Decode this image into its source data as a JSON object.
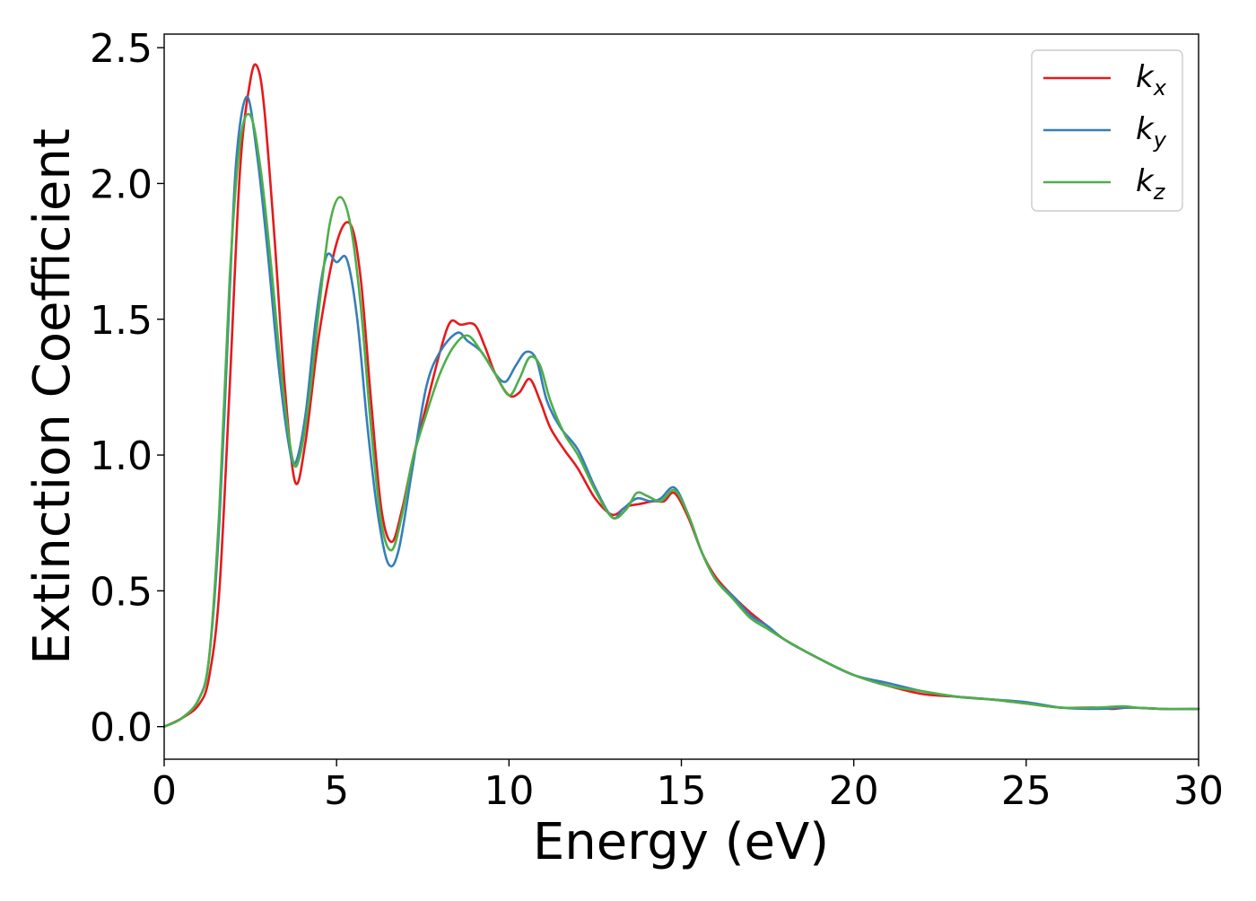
{
  "chart_data": {
    "type": "line",
    "title": "",
    "xlabel": "Energy (eV)",
    "ylabel": "Extinction Coefficient",
    "xlim": [
      0,
      30
    ],
    "ylim": [
      -0.12,
      2.55
    ],
    "xticks": [
      0,
      5,
      10,
      15,
      20,
      25,
      30
    ],
    "yticks": [
      0.0,
      0.5,
      1.0,
      1.5,
      2.0,
      2.5
    ],
    "xtick_labels": [
      "0",
      "5",
      "10",
      "15",
      "20",
      "25",
      "30"
    ],
    "ytick_labels": [
      "0.0",
      "0.5",
      "1.0",
      "1.5",
      "2.0",
      "2.5"
    ],
    "grid": false,
    "legend_position": "top-right",
    "series": [
      {
        "name": "kx",
        "label_main": "k",
        "label_sub": "x",
        "color": "#e41a1c",
        "x": [
          0,
          0.5,
          1.0,
          1.3,
          1.6,
          1.9,
          2.2,
          2.5,
          2.7,
          2.9,
          3.2,
          3.5,
          3.8,
          4.1,
          4.5,
          5.0,
          5.4,
          5.7,
          6.0,
          6.3,
          6.6,
          6.9,
          7.2,
          7.6,
          8.0,
          8.3,
          8.6,
          9.0,
          9.3,
          9.6,
          10.0,
          10.3,
          10.6,
          10.9,
          11.2,
          11.6,
          12.0,
          12.5,
          13.0,
          13.4,
          13.8,
          14.2,
          14.5,
          14.8,
          15.2,
          15.6,
          16.0,
          16.5,
          17.0,
          17.5,
          18.0,
          19.0,
          20.0,
          21.0,
          22.0,
          23.0,
          24.0,
          25.0,
          26.0,
          27.0,
          27.5,
          28.0,
          29.0,
          30.0
        ],
        "values": [
          0.0,
          0.03,
          0.08,
          0.18,
          0.5,
          1.25,
          2.05,
          2.38,
          2.43,
          2.28,
          1.8,
          1.25,
          0.9,
          1.05,
          1.45,
          1.78,
          1.85,
          1.65,
          1.2,
          0.8,
          0.68,
          0.8,
          0.98,
          1.18,
          1.38,
          1.49,
          1.48,
          1.48,
          1.4,
          1.3,
          1.22,
          1.23,
          1.28,
          1.2,
          1.1,
          1.02,
          0.95,
          0.84,
          0.78,
          0.81,
          0.82,
          0.83,
          0.83,
          0.86,
          0.77,
          0.64,
          0.55,
          0.48,
          0.42,
          0.37,
          0.32,
          0.25,
          0.19,
          0.15,
          0.12,
          0.11,
          0.1,
          0.085,
          0.07,
          0.07,
          0.065,
          0.07,
          0.065,
          0.065
        ]
      },
      {
        "name": "ky",
        "label_main": "k",
        "label_sub": "y",
        "color": "#377eb8",
        "x": [
          0,
          0.5,
          1.0,
          1.3,
          1.6,
          1.9,
          2.1,
          2.4,
          2.7,
          3.0,
          3.3,
          3.6,
          3.8,
          4.1,
          4.4,
          4.7,
          5.0,
          5.3,
          5.6,
          5.9,
          6.2,
          6.5,
          6.8,
          7.2,
          7.6,
          8.0,
          8.5,
          8.8,
          9.2,
          9.6,
          9.9,
          10.2,
          10.5,
          10.8,
          11.1,
          11.5,
          12.0,
          12.5,
          13.0,
          13.3,
          13.7,
          14.1,
          14.4,
          14.8,
          15.2,
          15.6,
          16.0,
          16.5,
          17.0,
          17.5,
          18.0,
          19.0,
          20.0,
          21.0,
          22.0,
          23.0,
          24.0,
          25.0,
          26.0,
          27.0,
          28.0,
          29.0,
          30.0
        ],
        "values": [
          0.0,
          0.03,
          0.1,
          0.25,
          0.75,
          1.6,
          2.1,
          2.32,
          2.1,
          1.75,
          1.35,
          1.05,
          0.97,
          1.15,
          1.5,
          1.73,
          1.71,
          1.72,
          1.5,
          1.1,
          0.78,
          0.6,
          0.65,
          0.95,
          1.25,
          1.38,
          1.45,
          1.42,
          1.38,
          1.3,
          1.27,
          1.33,
          1.38,
          1.35,
          1.2,
          1.1,
          1.02,
          0.88,
          0.77,
          0.8,
          0.84,
          0.83,
          0.84,
          0.88,
          0.78,
          0.64,
          0.54,
          0.48,
          0.41,
          0.37,
          0.32,
          0.25,
          0.19,
          0.16,
          0.13,
          0.11,
          0.1,
          0.09,
          0.07,
          0.065,
          0.07,
          0.065,
          0.065
        ]
      },
      {
        "name": "kz",
        "label_main": "k",
        "label_sub": "z",
        "color": "#4daf4a",
        "x": [
          0,
          0.5,
          1.0,
          1.3,
          1.6,
          1.9,
          2.2,
          2.5,
          2.8,
          3.1,
          3.4,
          3.7,
          3.9,
          4.2,
          4.5,
          4.8,
          5.1,
          5.4,
          5.7,
          6.0,
          6.3,
          6.6,
          6.9,
          7.2,
          7.6,
          8.0,
          8.4,
          8.8,
          9.2,
          9.6,
          10.0,
          10.3,
          10.6,
          10.9,
          11.2,
          11.6,
          12.0,
          12.5,
          13.0,
          13.4,
          13.7,
          14.0,
          14.4,
          14.8,
          15.2,
          15.6,
          16.0,
          16.5,
          17.0,
          17.5,
          18.0,
          19.0,
          20.0,
          21.0,
          22.0,
          23.0,
          24.0,
          25.0,
          26.0,
          27.0,
          27.8,
          28.2,
          29.0,
          30.0
        ],
        "values": [
          0.0,
          0.03,
          0.1,
          0.25,
          0.8,
          1.65,
          2.15,
          2.25,
          2.05,
          1.7,
          1.3,
          1.0,
          0.98,
          1.2,
          1.55,
          1.85,
          1.95,
          1.85,
          1.55,
          1.1,
          0.75,
          0.65,
          0.78,
          0.98,
          1.15,
          1.3,
          1.4,
          1.44,
          1.38,
          1.3,
          1.22,
          1.28,
          1.36,
          1.33,
          1.2,
          1.08,
          1.0,
          0.87,
          0.77,
          0.8,
          0.86,
          0.85,
          0.83,
          0.87,
          0.78,
          0.64,
          0.54,
          0.47,
          0.4,
          0.36,
          0.32,
          0.25,
          0.19,
          0.15,
          0.13,
          0.11,
          0.1,
          0.085,
          0.07,
          0.07,
          0.075,
          0.07,
          0.065,
          0.065
        ]
      }
    ]
  }
}
